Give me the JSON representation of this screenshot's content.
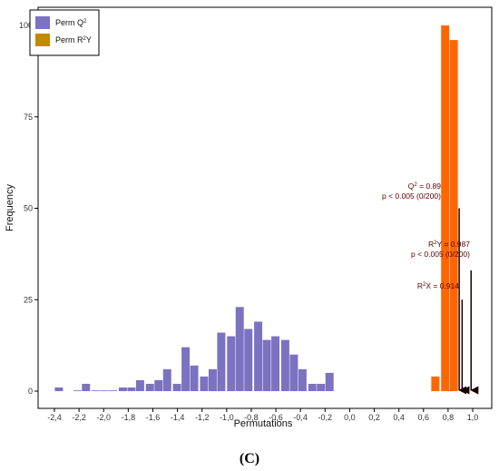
{
  "chart_data": {
    "type": "bar",
    "xlabel": "Permutations",
    "ylabel": "Frequency",
    "xlim": [
      -2.5,
      1.15
    ],
    "ylim": [
      0,
      103
    ],
    "x_ticks": [
      "-2,4",
      "-2,2",
      "-2,0",
      "-1,8",
      "-1,6",
      "-1,4",
      "-1,2",
      "-1,0",
      "-0,8",
      "-0,6",
      "-0,4",
      "-0,2",
      "0,0",
      "0,2",
      "0,4",
      "0,6",
      "0,8",
      "1,0"
    ],
    "x_tick_values": [
      -2.4,
      -2.2,
      -2.0,
      -1.8,
      -1.6,
      -1.4,
      -1.2,
      -1.0,
      -0.8,
      -0.6,
      -0.4,
      -0.2,
      0.0,
      0.2,
      0.4,
      0.6,
      0.8,
      1.0
    ],
    "y_ticks": [
      "0",
      "25",
      "50",
      "75",
      "100"
    ],
    "y_tick_values": [
      0,
      25,
      50,
      75,
      100
    ],
    "bin_width": 0.0735,
    "grid": false,
    "legend_position": "top-left",
    "series": [
      {
        "name": "Perm Q²",
        "legend_label": {
          "base": "Perm Q",
          "sup": "2",
          "tail": ""
        },
        "color": "#7b72c2",
        "bins": [
          {
            "x": -2.36,
            "y": 1
          },
          {
            "x": -2.21,
            "y": 0
          },
          {
            "x": -2.14,
            "y": 2
          },
          {
            "x": -2.06,
            "y": 0
          },
          {
            "x": -1.99,
            "y": 0
          },
          {
            "x": -1.92,
            "y": 0
          },
          {
            "x": -1.84,
            "y": 1
          },
          {
            "x": -1.77,
            "y": 1
          },
          {
            "x": -1.7,
            "y": 3
          },
          {
            "x": -1.62,
            "y": 2
          },
          {
            "x": -1.55,
            "y": 3
          },
          {
            "x": -1.48,
            "y": 6
          },
          {
            "x": -1.4,
            "y": 2
          },
          {
            "x": -1.33,
            "y": 12
          },
          {
            "x": -1.26,
            "y": 7
          },
          {
            "x": -1.18,
            "y": 4
          },
          {
            "x": -1.11,
            "y": 6
          },
          {
            "x": -1.04,
            "y": 16
          },
          {
            "x": -0.96,
            "y": 15
          },
          {
            "x": -0.89,
            "y": 23
          },
          {
            "x": -0.82,
            "y": 17
          },
          {
            "x": -0.74,
            "y": 19
          },
          {
            "x": -0.67,
            "y": 14
          },
          {
            "x": -0.6,
            "y": 15
          },
          {
            "x": -0.52,
            "y": 14
          },
          {
            "x": -0.45,
            "y": 10
          },
          {
            "x": -0.38,
            "y": 6
          },
          {
            "x": -0.3,
            "y": 2
          },
          {
            "x": -0.23,
            "y": 2
          },
          {
            "x": -0.16,
            "y": 5
          }
        ]
      },
      {
        "name": "Perm R²Y",
        "legend_label": {
          "base": "Perm R",
          "sup": "2",
          "tail": "Y"
        },
        "color": "#ff6600",
        "legend_color": "#c18a00",
        "bins": [
          {
            "x": 0.7,
            "y": 4
          },
          {
            "x": 0.78,
            "y": 100
          },
          {
            "x": 0.85,
            "y": 96
          }
        ]
      }
    ],
    "annotations": [
      {
        "lines": [
          {
            "base": "Q",
            "sup": "2",
            "tail": " = 0.89"
          },
          {
            "base": "p < 0.005 (0/200)",
            "sup": "",
            "tail": ""
          }
        ],
        "arrow_x": 0.89,
        "arrow_top": 50
      },
      {
        "lines": [
          {
            "base": "R",
            "sup": "2",
            "tail": "Y = 0.987"
          },
          {
            "base": "p < 0.005 (0/200)",
            "sup": "",
            "tail": ""
          }
        ],
        "arrow_x": 0.987,
        "arrow_top": 33
      },
      {
        "lines": [
          {
            "base": "R",
            "sup": "2",
            "tail": "X = 0.914"
          }
        ],
        "arrow_x": 0.914,
        "arrow_top": 25
      }
    ]
  },
  "caption": "(C)"
}
